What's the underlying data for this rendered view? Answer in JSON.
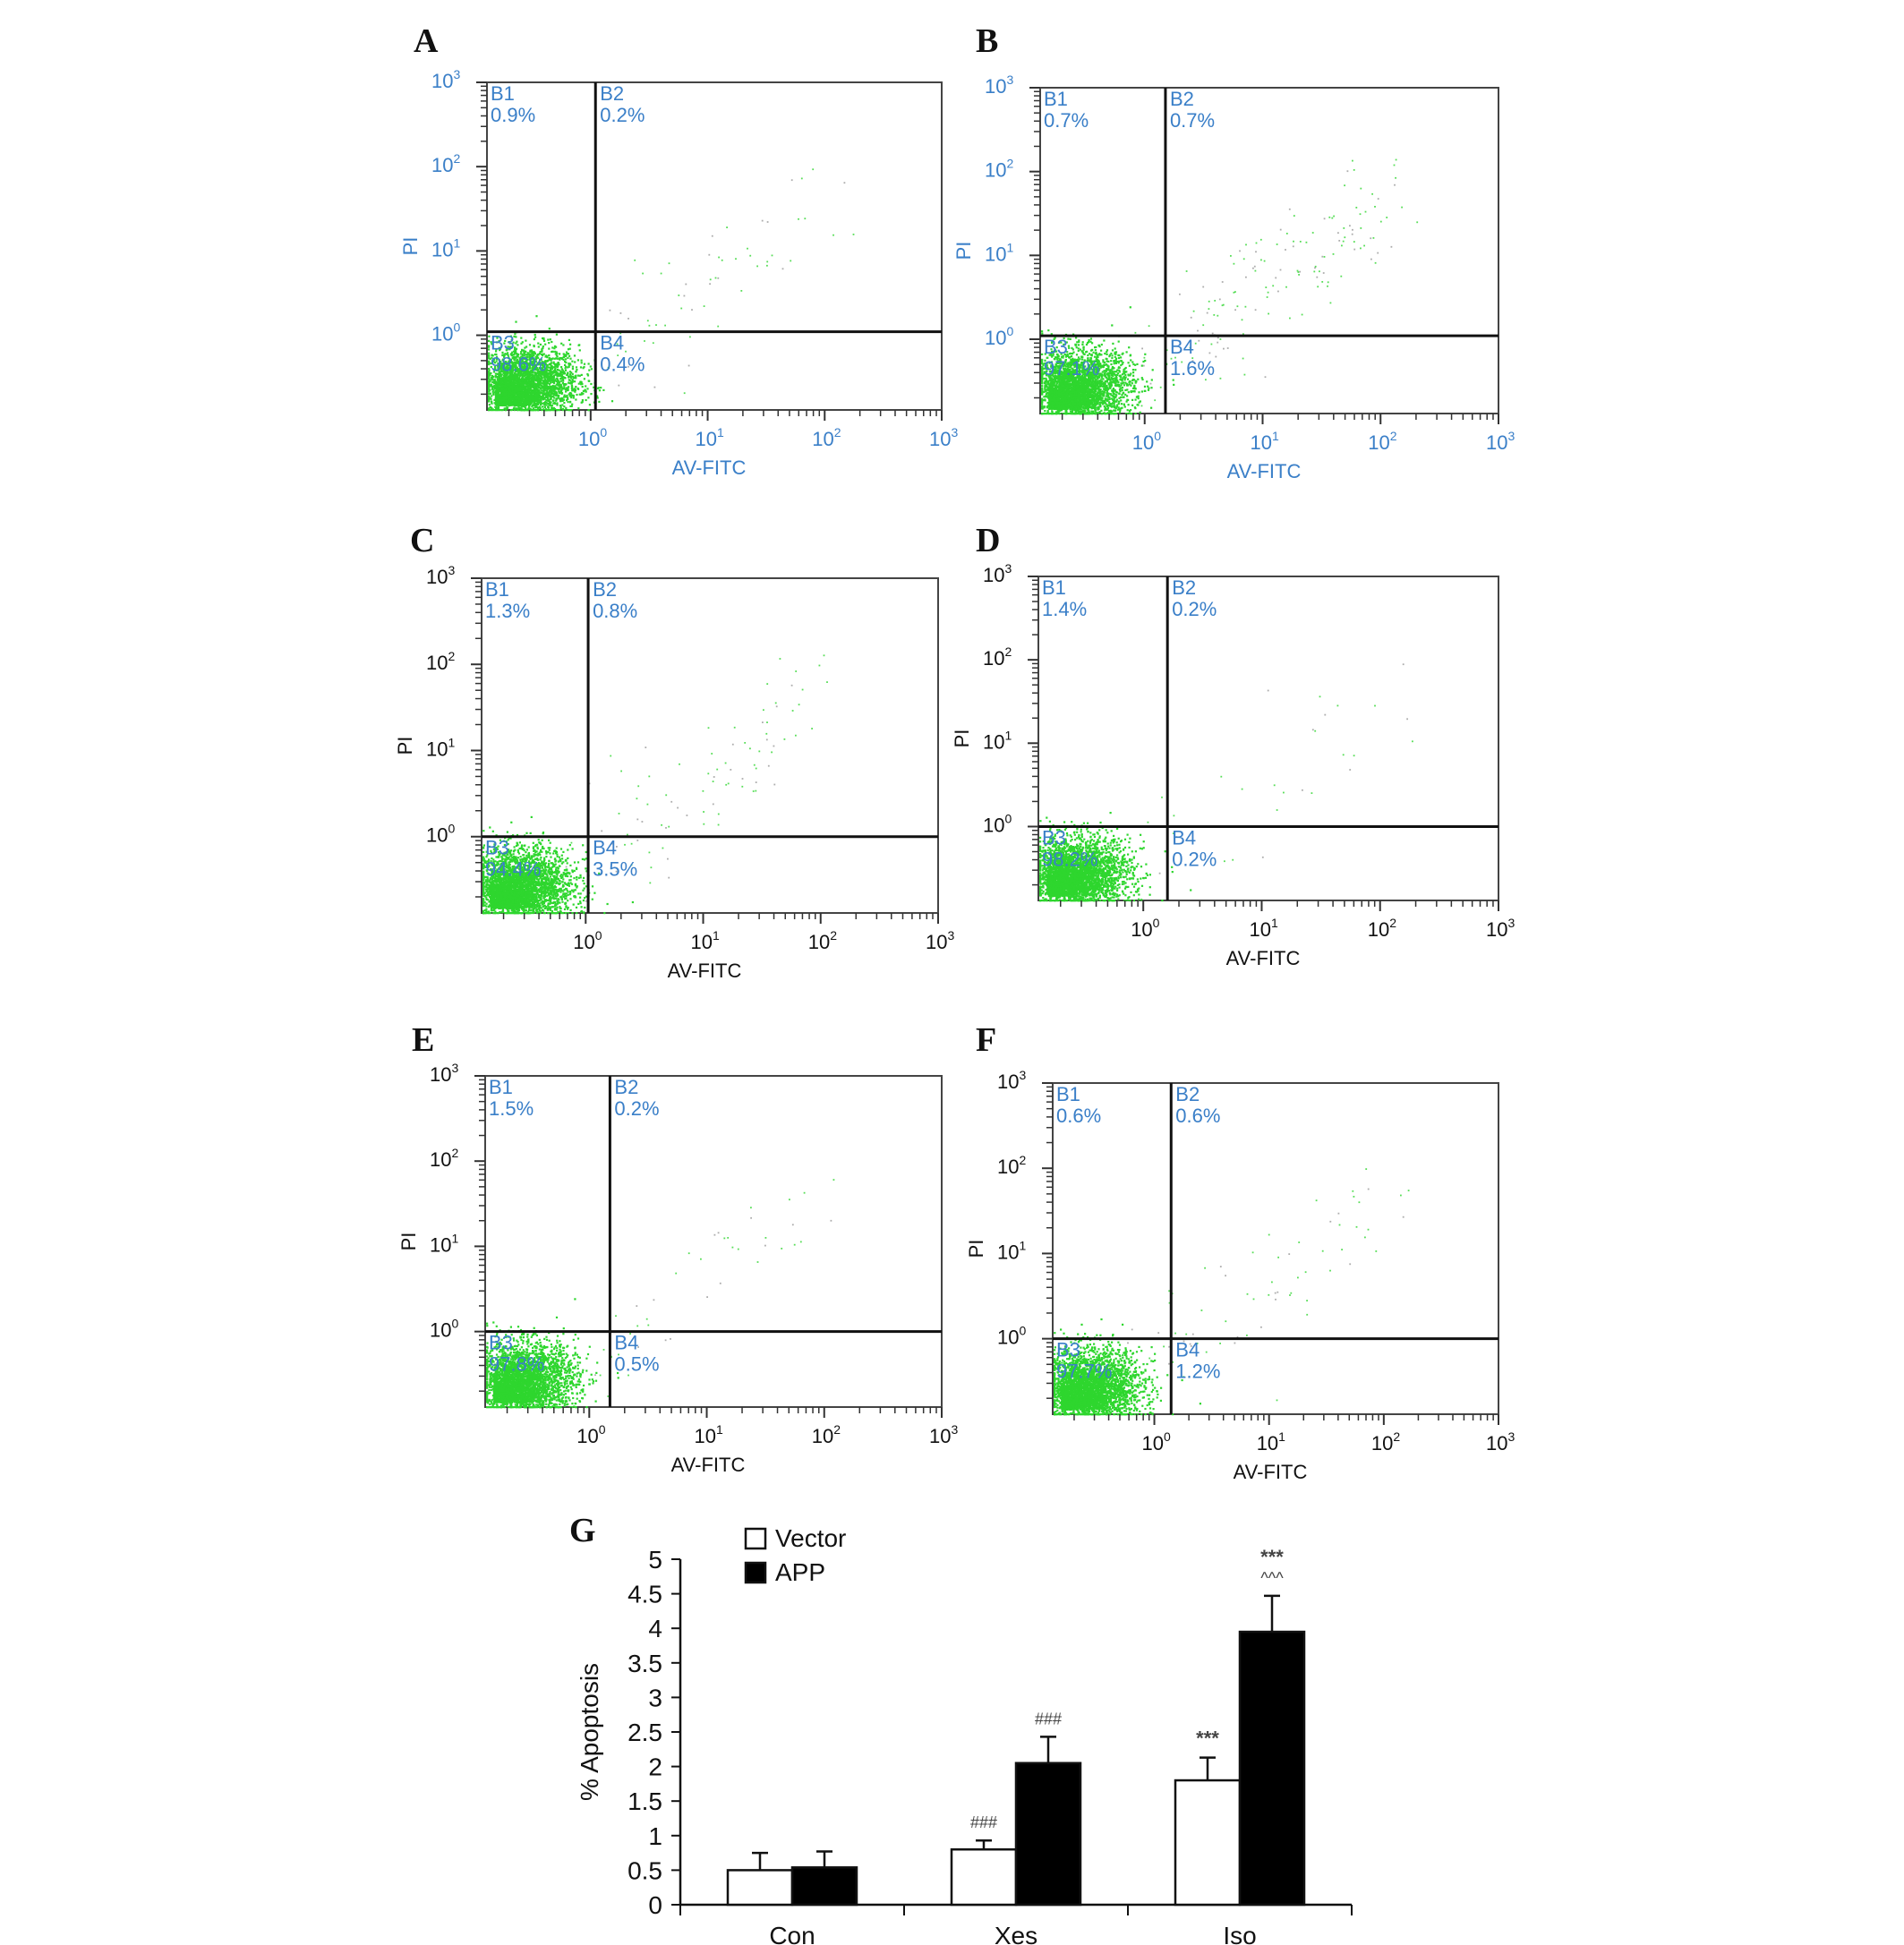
{
  "chart_data": [
    {
      "type": "scatter",
      "panel": "A",
      "xlabel": "AV-FITC",
      "ylabel": "PI",
      "axis_scale": "log",
      "xlim": [
        0.13,
        1000
      ],
      "ylim": [
        0.13,
        1000
      ],
      "x_ticks": [
        "10",
        "10",
        "10",
        "10"
      ],
      "x_tick_exponents": [
        "0",
        "1",
        "2",
        "3"
      ],
      "y_ticks": [
        "10",
        "10",
        "10",
        "10"
      ],
      "y_tick_exponents": [
        "0",
        "1",
        "2",
        "3"
      ],
      "quadrants": [
        {
          "name": "B1",
          "value": "0.9%"
        },
        {
          "name": "B2",
          "value": "0.2%"
        },
        {
          "name": "B3",
          "value": "98.6%"
        },
        {
          "name": "B4",
          "value": "0.4%"
        }
      ],
      "gate": {
        "x": 1.1,
        "y": 1.1
      },
      "label_color": "#3a7fc8",
      "point_color": "#2ed62e"
    },
    {
      "type": "scatter",
      "panel": "B",
      "xlabel": "AV-FITC",
      "ylabel": "PI",
      "axis_scale": "log",
      "xlim": [
        0.13,
        1000
      ],
      "ylim": [
        0.13,
        1000
      ],
      "x_ticks": [
        "10",
        "10",
        "10",
        "10"
      ],
      "x_tick_exponents": [
        "0",
        "1",
        "2",
        "3"
      ],
      "y_ticks": [
        "10",
        "10",
        "10",
        "10"
      ],
      "y_tick_exponents": [
        "0",
        "1",
        "2",
        "3"
      ],
      "quadrants": [
        {
          "name": "B1",
          "value": "0.7%"
        },
        {
          "name": "B2",
          "value": "0.7%"
        },
        {
          "name": "B3",
          "value": "97.1%"
        },
        {
          "name": "B4",
          "value": "1.6%"
        }
      ],
      "gate": {
        "x": 1.5,
        "y": 1.1
      },
      "label_color": "#3a7fc8",
      "point_color": "#2ed62e"
    },
    {
      "type": "scatter",
      "panel": "C",
      "xlabel": "AV-FITC",
      "ylabel": "PI",
      "axis_scale": "log",
      "xlim": [
        0.13,
        1000
      ],
      "ylim": [
        0.13,
        1000
      ],
      "x_ticks": [
        "10",
        "10",
        "10",
        "10"
      ],
      "x_tick_exponents": [
        "0",
        "1",
        "2",
        "3"
      ],
      "y_ticks": [
        "10",
        "10",
        "10",
        "10"
      ],
      "y_tick_exponents": [
        "0",
        "1",
        "2",
        "3"
      ],
      "quadrants": [
        {
          "name": "B1",
          "value": "1.3%"
        },
        {
          "name": "B2",
          "value": "0.8%"
        },
        {
          "name": "B3",
          "value": "94.4%"
        },
        {
          "name": "B4",
          "value": "3.5%"
        }
      ],
      "gate": {
        "x": 1.05,
        "y": 1.0
      },
      "label_color": "#3a7fc8",
      "point_color": "#2ed62e"
    },
    {
      "type": "scatter",
      "panel": "D",
      "xlabel": "AV-FITC",
      "ylabel": "PI",
      "axis_scale": "log",
      "xlim": [
        0.13,
        1000
      ],
      "ylim": [
        0.13,
        1000
      ],
      "x_ticks": [
        "10",
        "10",
        "10",
        "10"
      ],
      "x_tick_exponents": [
        "0",
        "1",
        "2",
        "3"
      ],
      "y_ticks": [
        "10",
        "10",
        "10",
        "10"
      ],
      "y_tick_exponents": [
        "0",
        "1",
        "2",
        "3"
      ],
      "quadrants": [
        {
          "name": "B1",
          "value": "1.4%"
        },
        {
          "name": "B2",
          "value": "0.2%"
        },
        {
          "name": "B3",
          "value": "98.2%"
        },
        {
          "name": "B4",
          "value": "0.2%"
        }
      ],
      "gate": {
        "x": 1.6,
        "y": 1.0
      },
      "label_color": "#3a7fc8",
      "point_color": "#2ed62e"
    },
    {
      "type": "scatter",
      "panel": "E",
      "xlabel": "AV-FITC",
      "ylabel": "PI",
      "axis_scale": "log",
      "xlim": [
        0.13,
        1000
      ],
      "ylim": [
        0.13,
        1000
      ],
      "x_ticks": [
        "10",
        "10",
        "10",
        "10"
      ],
      "x_tick_exponents": [
        "0",
        "1",
        "2",
        "3"
      ],
      "y_ticks": [
        "10",
        "10",
        "10",
        "10"
      ],
      "y_tick_exponents": [
        "0",
        "1",
        "2",
        "3"
      ],
      "quadrants": [
        {
          "name": "B1",
          "value": "1.5%"
        },
        {
          "name": "B2",
          "value": "0.2%"
        },
        {
          "name": "B3",
          "value": "97.8%"
        },
        {
          "name": "B4",
          "value": "0.5%"
        }
      ],
      "gate": {
        "x": 1.5,
        "y": 1.0
      },
      "label_color": "#3a7fc8",
      "point_color": "#2ed62e"
    },
    {
      "type": "scatter",
      "panel": "F",
      "xlabel": "AV-FITC",
      "ylabel": "PI",
      "axis_scale": "log",
      "xlim": [
        0.13,
        1000
      ],
      "ylim": [
        0.13,
        1000
      ],
      "x_ticks": [
        "10",
        "10",
        "10",
        "10"
      ],
      "x_tick_exponents": [
        "0",
        "1",
        "2",
        "3"
      ],
      "y_ticks": [
        "10",
        "10",
        "10",
        "10"
      ],
      "y_tick_exponents": [
        "0",
        "1",
        "2",
        "3"
      ],
      "quadrants": [
        {
          "name": "B1",
          "value": "0.6%"
        },
        {
          "name": "B2",
          "value": "0.6%"
        },
        {
          "name": "B3",
          "value": "97.7%"
        },
        {
          "name": "B4",
          "value": "1.2%"
        }
      ],
      "gate": {
        "x": 1.4,
        "y": 1.0
      },
      "label_color": "#3a7fc8",
      "point_color": "#2ed62e"
    },
    {
      "type": "bar",
      "panel": "G",
      "ylabel": "% Apoptosis",
      "categories": [
        "Con",
        "Xes",
        "Iso"
      ],
      "ylim": [
        0,
        5
      ],
      "yticks": [
        "0",
        "0.5",
        "1",
        "1.5",
        "2",
        "2.5",
        "3",
        "3.5",
        "4",
        "4.5",
        "5"
      ],
      "legend_position": "top-left",
      "series": [
        {
          "name": "Vector",
          "color": "#ffffff",
          "values": [
            0.5,
            0.8,
            1.8
          ],
          "errors": [
            0.25,
            0.13,
            0.33
          ],
          "annotations": [
            "",
            "###",
            "***"
          ]
        },
        {
          "name": "APP",
          "color": "#000000",
          "values": [
            0.54,
            2.05,
            3.95
          ],
          "errors": [
            0.23,
            0.38,
            0.52
          ],
          "annotations": [
            "",
            "###",
            "***\n^^^"
          ]
        }
      ]
    }
  ]
}
